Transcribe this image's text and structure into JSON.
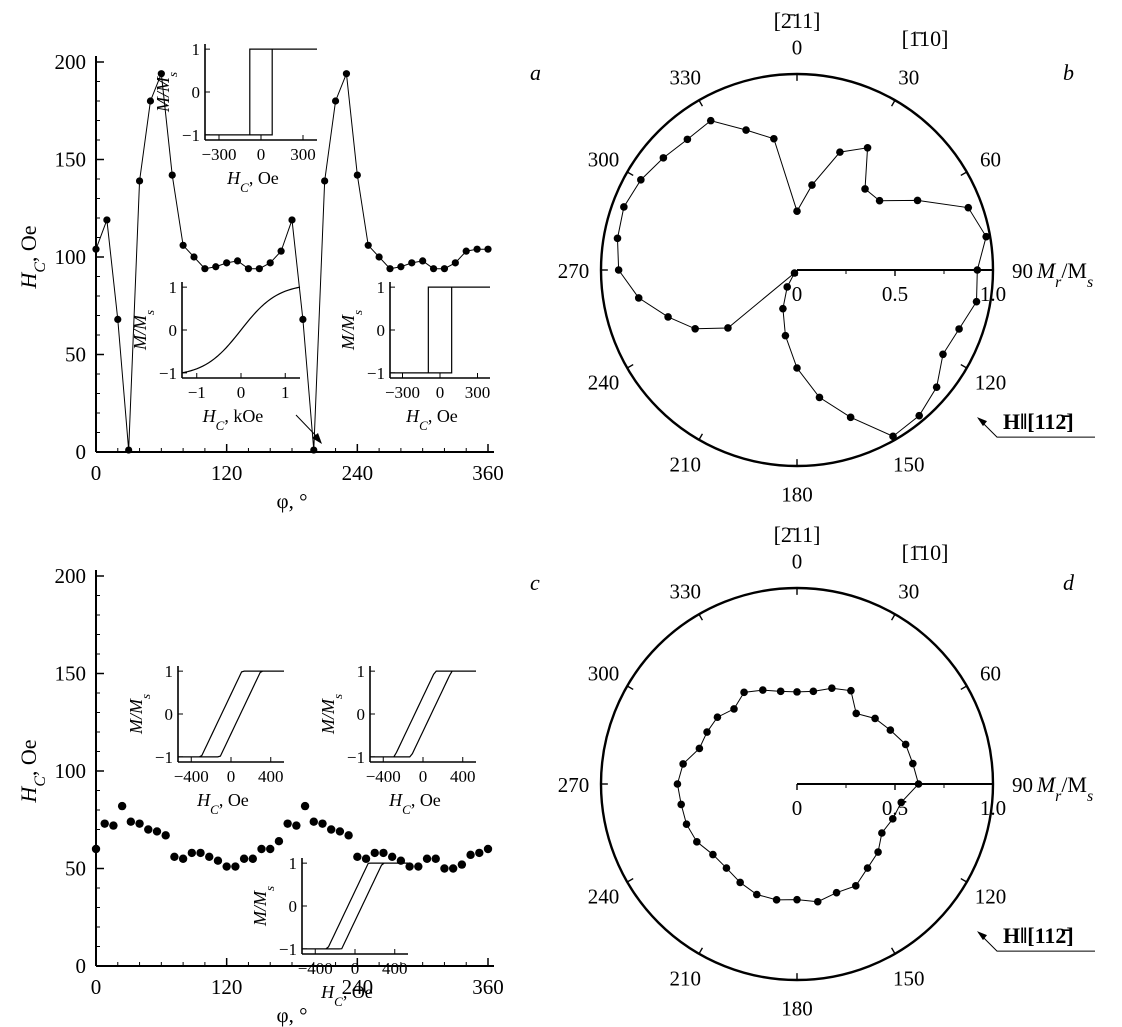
{
  "chart_data": [
    {
      "panel": "a",
      "type": "scatter",
      "connected": true,
      "xlabel": "φ, °",
      "ylabel": "H_C, Oe",
      "xlim": [
        0,
        360
      ],
      "ylim": [
        0,
        200
      ],
      "xticks": [
        0,
        120,
        240,
        360
      ],
      "yticks": [
        0,
        50,
        100,
        150,
        200
      ],
      "x": [
        0,
        10,
        20,
        30,
        40,
        50,
        60,
        70,
        80,
        90,
        100,
        110,
        120,
        130,
        140,
        150,
        160,
        170,
        180,
        190,
        200,
        210,
        220,
        230,
        240,
        250,
        260,
        270,
        280,
        290,
        300,
        310,
        320,
        330,
        340,
        350,
        360
      ],
      "y": [
        104,
        119,
        68,
        1,
        139,
        180,
        194,
        142,
        106,
        100,
        94,
        95,
        97,
        98,
        94,
        94,
        97,
        103,
        119,
        68,
        1,
        139,
        180,
        194,
        142,
        106,
        100,
        94,
        95,
        97,
        98,
        94,
        94,
        97,
        103,
        104,
        104
      ],
      "insets": [
        {
          "xlabel": "H_C, Oe",
          "ylabel": "M/M_s",
          "xticks": [
            "−300",
            "0",
            "300"
          ],
          "yticks": [
            "−1",
            "0",
            "1"
          ],
          "loop": "square",
          "Hc": 60
        },
        {
          "xlabel": "H_C, kOe",
          "ylabel": "M/M_s",
          "xticks": [
            "−1",
            "0",
            "1"
          ],
          "yticks": [
            "−1",
            "0",
            "1"
          ],
          "loop": "hard-axis"
        },
        {
          "xlabel": "H_C, Oe",
          "ylabel": "M/M_s",
          "xticks": [
            "−300",
            "0",
            "300"
          ],
          "yticks": [
            "−1",
            "0",
            "1"
          ],
          "loop": "square",
          "Hc": 70
        }
      ]
    },
    {
      "panel": "b",
      "type": "polar",
      "connected": true,
      "radial_label": "M_r/M_s",
      "radial_ticks": [
        "0",
        "0.5",
        "1.0"
      ],
      "rlim": [
        0,
        1
      ],
      "angle_ticks": [
        0,
        30,
        60,
        90,
        120,
        150,
        180,
        210,
        240,
        270,
        300,
        330
      ],
      "direction_labels": {
        "top": "[2̄11]",
        "upper_right": "[1̄10]"
      },
      "field_label": "H‖[112̄]",
      "theta": [
        0,
        10,
        20,
        30,
        40,
        50,
        60,
        70,
        80,
        90,
        100,
        110,
        120,
        130,
        140,
        150,
        160,
        170,
        180,
        190,
        200,
        210,
        220,
        230,
        240,
        250,
        260,
        270,
        280,
        290,
        300,
        310,
        320,
        330,
        340,
        350
      ],
      "r": [
        0.3,
        0.44,
        0.64,
        0.72,
        0.54,
        0.55,
        0.71,
        0.93,
        0.98,
        0.92,
        0.93,
        0.88,
        0.86,
        0.93,
        0.97,
        0.98,
        0.8,
        0.66,
        0.5,
        0.34,
        0.21,
        0.1,
        0.02,
        0.46,
        0.6,
        0.7,
        0.82,
        0.91,
        0.93,
        0.94,
        0.92,
        0.89,
        0.87,
        0.88,
        0.76,
        0.68
      ]
    },
    {
      "panel": "c",
      "type": "scatter",
      "connected": false,
      "xlabel": "φ, °",
      "ylabel": "H_C, Oe",
      "xlim": [
        0,
        360
      ],
      "ylim": [
        0,
        200
      ],
      "xticks": [
        0,
        120,
        240,
        360
      ],
      "yticks": [
        0,
        50,
        100,
        150,
        200
      ],
      "x": [
        0,
        8,
        16,
        24,
        32,
        40,
        48,
        56,
        64,
        72,
        80,
        88,
        96,
        104,
        112,
        120,
        128,
        136,
        144,
        152,
        160,
        168,
        176,
        184,
        192,
        200,
        208,
        216,
        224,
        232,
        240,
        248,
        256,
        264,
        272,
        280,
        288,
        296,
        304,
        312,
        320,
        328,
        336,
        344,
        352,
        360
      ],
      "y": [
        60,
        73,
        72,
        82,
        74,
        73,
        70,
        69,
        67,
        56,
        55,
        58,
        58,
        56,
        54,
        51,
        51,
        55,
        55,
        60,
        60,
        64,
        73,
        72,
        82,
        74,
        73,
        70,
        69,
        67,
        56,
        55,
        58,
        58,
        56,
        54,
        51,
        51,
        55,
        55,
        50,
        50,
        52,
        57,
        58,
        60
      ],
      "insets": [
        {
          "xlabel": "H_C, Oe",
          "ylabel": "M/M_s",
          "xticks": [
            "−400",
            "0",
            "400"
          ],
          "yticks": [
            "−1",
            "0",
            "1"
          ],
          "loop": "sheared",
          "Hc": 80
        },
        {
          "xlabel": "H_C, Oe",
          "ylabel": "M/M_s",
          "xticks": [
            "−400",
            "0",
            "400"
          ],
          "yticks": [
            "−1",
            "0",
            "1"
          ],
          "loop": "sheared",
          "Hc": 70
        },
        {
          "xlabel": "H_C, Oe",
          "ylabel": "M/M_s",
          "xticks": [
            "−400",
            "0",
            "400"
          ],
          "yticks": [
            "−1",
            "0",
            "1"
          ],
          "loop": "sheared",
          "Hc": 60
        }
      ]
    },
    {
      "panel": "d",
      "type": "polar",
      "connected": true,
      "radial_label": "M_r/M_s",
      "radial_ticks": [
        "0",
        "0.5",
        "1.0"
      ],
      "rlim": [
        0,
        1
      ],
      "angle_ticks": [
        0,
        30,
        60,
        90,
        120,
        150,
        180,
        210,
        240,
        270,
        300,
        330
      ],
      "direction_labels": {
        "top": "[2̄11]",
        "upper_right": "[1̄10]"
      },
      "field_label": "H‖[112̄]",
      "theta": [
        0,
        10,
        20,
        30,
        40,
        50,
        60,
        70,
        80,
        90,
        100,
        110,
        120,
        130,
        140,
        150,
        160,
        170,
        180,
        190,
        200,
        210,
        220,
        230,
        240,
        250,
        260,
        270,
        280,
        290,
        300,
        310,
        320,
        330,
        340,
        350
      ],
      "r": [
        0.47,
        0.48,
        0.52,
        0.55,
        0.47,
        0.52,
        0.55,
        0.59,
        0.6,
        0.62,
        0.54,
        0.52,
        0.5,
        0.54,
        0.56,
        0.6,
        0.59,
        0.61,
        0.59,
        0.6,
        0.6,
        0.58,
        0.56,
        0.56,
        0.59,
        0.6,
        0.6,
        0.61,
        0.59,
        0.53,
        0.53,
        0.53,
        0.5,
        0.54,
        0.51,
        0.48
      ]
    }
  ],
  "panel_labels": {
    "a": "a",
    "b": "b",
    "c": "c",
    "d": "d"
  },
  "polar_text": {
    "top_dir": "[2̄11]",
    "side_dir": "[1̄10]",
    "angle_labels": [
      "0",
      "30",
      "60",
      "90",
      "120",
      "150",
      "180",
      "210",
      "240",
      "270",
      "300",
      "330"
    ],
    "radial_ticks": [
      "0",
      "0.5",
      "1.0"
    ]
  }
}
